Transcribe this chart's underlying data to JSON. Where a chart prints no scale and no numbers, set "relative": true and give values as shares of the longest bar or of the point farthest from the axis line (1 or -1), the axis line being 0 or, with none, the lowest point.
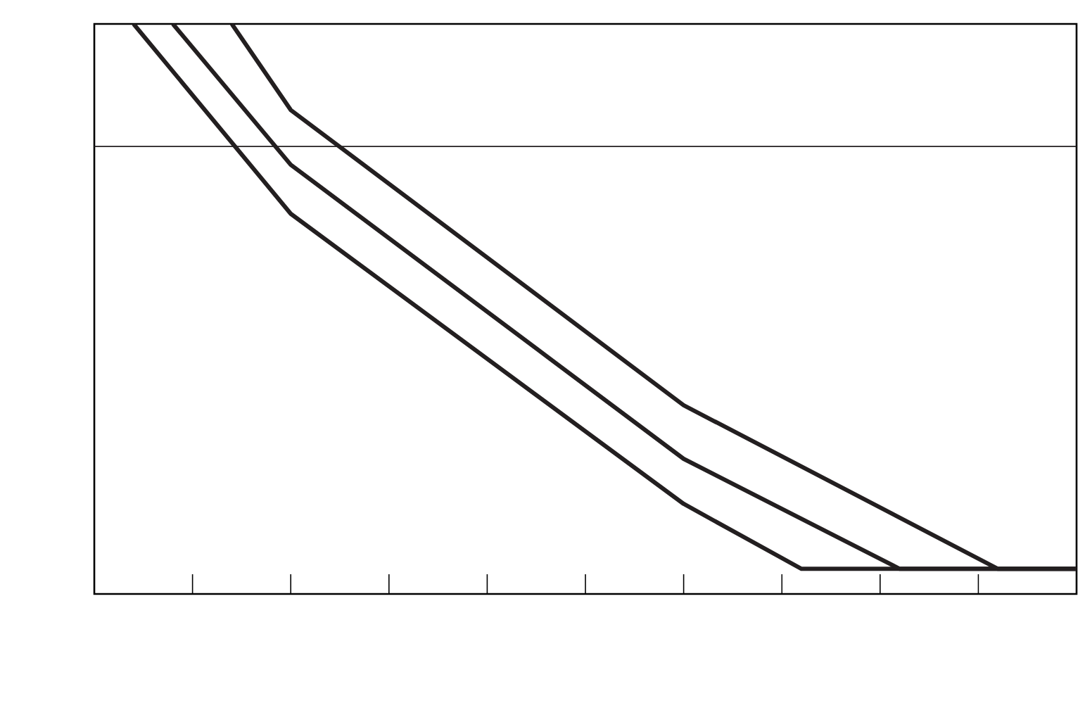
{
  "chart_data": {
    "type": "line",
    "relative": true,
    "line_style": "solid",
    "categories": [
      null,
      null,
      null,
      null,
      null,
      null,
      null,
      null,
      null,
      null,
      null,
      null,
      null,
      null,
      null,
      null,
      null,
      null,
      null,
      null,
      null,
      null,
      null,
      null,
      null,
      null,
      null,
      null,
      null,
      null,
      null,
      null,
      null,
      null,
      null,
      null,
      null,
      null,
      null,
      null,
      null,
      null,
      null,
      null,
      null,
      null,
      null,
      null,
      null,
      null,
      null
    ],
    "series": [
      {
        "color": "#231f20",
        "values": [
          null,
          null,
          1,
          null,
          null,
          null,
          null,
          null,
          null,
          null,
          0.667,
          null,
          null,
          null,
          null,
          null,
          null,
          null,
          null,
          null,
          null,
          null,
          null,
          null,
          null,
          null,
          null,
          null,
          null,
          null,
          0.158,
          null,
          null,
          null,
          null,
          null,
          0.044,
          null,
          null,
          null,
          null,
          null,
          null,
          null,
          null,
          null,
          null,
          null,
          null,
          null,
          0.044
        ]
      },
      {
        "color": "#231f20",
        "values": [
          null,
          null,
          null,
          null,
          1,
          null,
          null,
          null,
          null,
          null,
          0.753,
          null,
          null,
          null,
          null,
          null,
          null,
          null,
          null,
          null,
          null,
          null,
          null,
          null,
          null,
          null,
          null,
          null,
          null,
          null,
          0.237,
          null,
          null,
          null,
          null,
          null,
          null,
          null,
          null,
          null,
          null,
          0.044,
          null,
          null,
          null,
          null,
          null,
          null,
          null,
          null,
          0.044
        ]
      },
      {
        "color": "#231f20",
        "values": [
          null,
          null,
          null,
          null,
          null,
          null,
          null,
          1,
          null,
          null,
          0.849,
          null,
          null,
          null,
          null,
          null,
          null,
          null,
          null,
          null,
          null,
          null,
          null,
          null,
          null,
          null,
          null,
          null,
          null,
          null,
          0.331,
          null,
          null,
          null,
          null,
          null,
          null,
          null,
          null,
          null,
          null,
          null,
          null,
          null,
          null,
          null,
          0.044,
          null,
          null,
          null,
          0.044
        ]
      }
    ],
    "ref_lines": [
      {
        "axis": "y",
        "value": 0.785,
        "color": "#231f20"
      }
    ]
  }
}
